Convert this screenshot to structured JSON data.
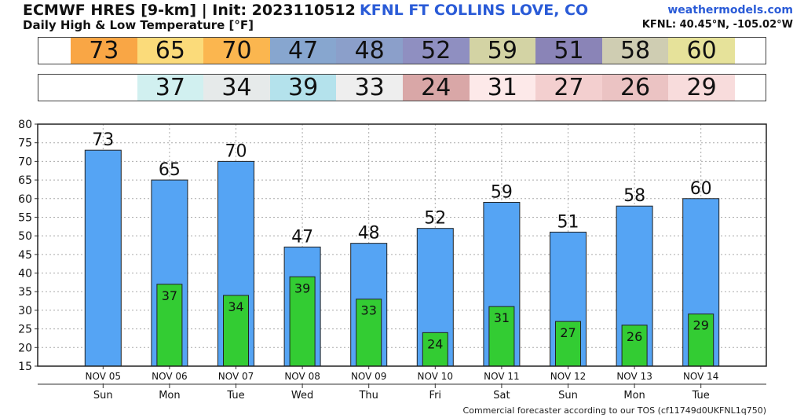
{
  "header": {
    "title": "ECMWF HRES [9-km] | Init: 2023110512",
    "subtitle": "Daily High & Low Temperature [°F]",
    "station": "KFNL FT COLLINS LOVE, CO",
    "site": "weathermodels.com",
    "coords": "KFNL: 40.45°N, -105.02°W"
  },
  "strips": {
    "high": [
      {
        "value": "73",
        "color": "#f9a645"
      },
      {
        "value": "65",
        "color": "#fbdb7a"
      },
      {
        "value": "70",
        "color": "#fbb64f"
      },
      {
        "value": "47",
        "color": "#87a6cf"
      },
      {
        "value": "48",
        "color": "#8b9fca"
      },
      {
        "value": "52",
        "color": "#8f8fc1"
      },
      {
        "value": "59",
        "color": "#d3d3a4"
      },
      {
        "value": "51",
        "color": "#8a84b7"
      },
      {
        "value": "58",
        "color": "#cfcdb2"
      },
      {
        "value": "60",
        "color": "#e6e29a"
      }
    ],
    "low": [
      {
        "value": "",
        "color": "#ffffff"
      },
      {
        "value": "37",
        "color": "#d1f0f0"
      },
      {
        "value": "34",
        "color": "#e6eaea"
      },
      {
        "value": "39",
        "color": "#b4e2ec"
      },
      {
        "value": "33",
        "color": "#eeeeee"
      },
      {
        "value": "24",
        "color": "#d9a7a7"
      },
      {
        "value": "31",
        "color": "#fde9e9"
      },
      {
        "value": "27",
        "color": "#f3cfcf"
      },
      {
        "value": "26",
        "color": "#ebc3c3"
      },
      {
        "value": "29",
        "color": "#f8dcdc"
      }
    ]
  },
  "chart_data": {
    "type": "bar",
    "categories": [
      "NOV 05",
      "NOV 06",
      "NOV 07",
      "NOV 08",
      "NOV 09",
      "NOV 10",
      "NOV 11",
      "NOV 12",
      "NOV 13",
      "NOV 14"
    ],
    "weekdays": [
      "Sun",
      "Mon",
      "Tue",
      "Wed",
      "Thu",
      "Fri",
      "Sat",
      "Sun",
      "Mon",
      "Tue"
    ],
    "series": [
      {
        "values": [
          73,
          65,
          70,
          47,
          48,
          52,
          59,
          51,
          58,
          60
        ],
        "color": "#55a4f4"
      },
      {
        "values": [
          null,
          37,
          34,
          39,
          33,
          24,
          31,
          27,
          26,
          29
        ],
        "color": "#33cc33"
      }
    ],
    "ylim": [
      15,
      80
    ],
    "yticks": [
      15,
      20,
      25,
      30,
      35,
      40,
      45,
      50,
      55,
      60,
      65,
      70,
      75,
      80
    ],
    "grid": true
  },
  "footer": "Commercial forecaster according to our TOS (cf11749d0UKFNL1q750)"
}
